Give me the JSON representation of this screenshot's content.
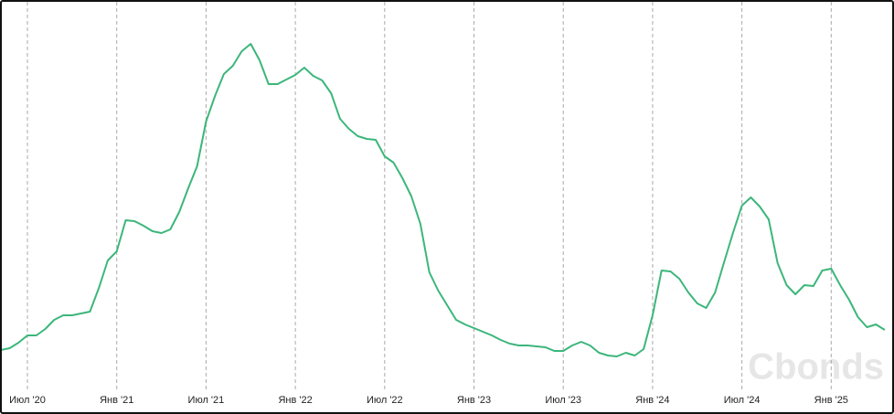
{
  "chart_data": {
    "type": "line",
    "categories": [
      null,
      null,
      null,
      "Июл '20",
      null,
      null,
      null,
      null,
      null,
      null,
      null,
      null,
      null,
      "Янв '21",
      null,
      null,
      null,
      null,
      null,
      null,
      null,
      null,
      null,
      "Июл '21",
      null,
      null,
      null,
      null,
      null,
      null,
      null,
      null,
      null,
      "Янв '22",
      null,
      null,
      null,
      null,
      null,
      null,
      null,
      null,
      null,
      "Июл '22",
      null,
      null,
      null,
      null,
      null,
      null,
      null,
      null,
      null,
      "Янв '23",
      null,
      null,
      null,
      null,
      null,
      null,
      null,
      null,
      null,
      "Июл '23",
      null,
      null,
      null,
      null,
      null,
      null,
      null,
      null,
      null,
      "Янв '24",
      null,
      null,
      null,
      null,
      null,
      null,
      null,
      null,
      null,
      "Июл '24",
      null,
      null,
      null,
      null,
      null,
      null,
      null,
      null,
      null,
      "Янв '25",
      null,
      null,
      null,
      null,
      null,
      null
    ],
    "series": [
      {
        "color": "#3cb67b",
        "values": [
          17,
          19,
          25,
          33,
          33,
          40,
          50,
          55,
          55,
          57,
          59,
          85,
          115,
          125,
          159,
          158,
          153,
          147,
          145,
          149,
          168,
          194,
          218,
          267,
          295,
          319,
          328,
          344,
          352,
          334,
          308,
          308,
          313,
          318,
          326,
          317,
          312,
          298,
          270,
          259,
          251,
          248,
          247,
          229,
          222,
          205,
          185,
          155,
          102,
          82,
          66,
          50,
          45,
          41,
          37,
          33,
          28,
          24,
          22,
          22,
          21,
          20,
          16,
          16,
          22,
          26,
          22,
          14,
          11,
          10,
          14,
          11,
          18,
          55,
          104,
          103,
          95,
          80,
          68,
          63,
          80,
          113,
          145,
          175,
          184,
          174,
          160,
          112,
          88,
          78,
          88,
          87,
          104,
          106,
          88,
          72,
          53,
          42,
          45,
          39
        ]
      }
    ],
    "grid": true,
    "watermark": "Cbonds"
  }
}
